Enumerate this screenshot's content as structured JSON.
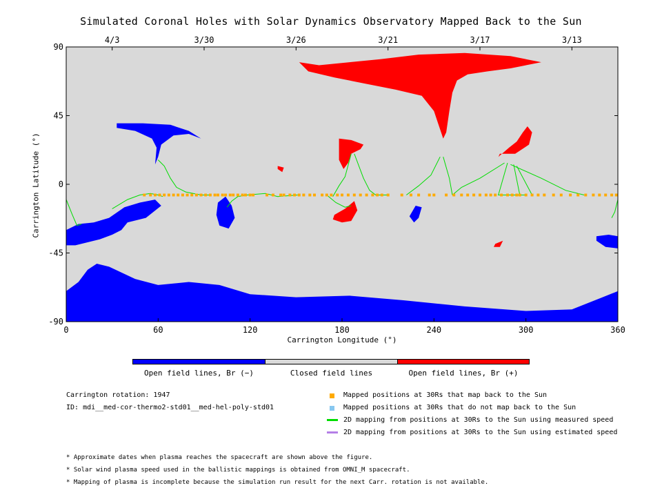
{
  "title": "Simulated Coronal Holes with Solar Dynamics Observatory Mapped Back to the Sun",
  "chart_data": {
    "type": "map",
    "xlabel": "Carrington Longitude (°)",
    "ylabel": "Carrington Latitude (°)",
    "xlim": [
      0,
      360
    ],
    "ylim": [
      -90,
      90
    ],
    "x_ticks": [
      "0",
      "60",
      "120",
      "180",
      "240",
      "300",
      "360"
    ],
    "y_ticks": [
      "90",
      "45",
      "0",
      "-45",
      "-90"
    ],
    "top_dates": [
      {
        "lon": 30,
        "label": "4/3"
      },
      {
        "lon": 90,
        "label": "3/30"
      },
      {
        "lon": 150,
        "label": "3/26"
      },
      {
        "lon": 210,
        "label": "3/21"
      },
      {
        "lon": 270,
        "label": "3/17"
      },
      {
        "lon": 330,
        "label": "3/13"
      }
    ],
    "colors": {
      "background": "#d9d9d9",
      "open_negative": "#0000ff",
      "open_positive": "#ff0000",
      "mapped": "#ffaa00",
      "unmapped": "#88c8f0",
      "measured_line": "#00dd00",
      "estimated_line": "#b47fe6"
    },
    "coronal_holes": [
      {
        "polarity": "positive",
        "region": "north-polar-extension",
        "points": [
          [
            152,
            80
          ],
          [
            165,
            78
          ],
          [
            185,
            80
          ],
          [
            205,
            82
          ],
          [
            230,
            85
          ],
          [
            260,
            86
          ],
          [
            290,
            84
          ],
          [
            310,
            80
          ],
          [
            290,
            76
          ],
          [
            275,
            74
          ],
          [
            262,
            72
          ],
          [
            255,
            68
          ],
          [
            252,
            60
          ],
          [
            250,
            48
          ],
          [
            248,
            34
          ],
          [
            246,
            30
          ],
          [
            244,
            36
          ],
          [
            240,
            48
          ],
          [
            232,
            58
          ],
          [
            215,
            62
          ],
          [
            195,
            66
          ],
          [
            175,
            70
          ],
          [
            158,
            74
          ]
        ]
      },
      {
        "polarity": "negative",
        "region": "south-polar",
        "points": [
          [
            0,
            -90
          ],
          [
            0,
            -70
          ],
          [
            8,
            -64
          ],
          [
            14,
            -56
          ],
          [
            20,
            -52
          ],
          [
            28,
            -54
          ],
          [
            45,
            -62
          ],
          [
            60,
            -66
          ],
          [
            80,
            -64
          ],
          [
            100,
            -66
          ],
          [
            120,
            -72
          ],
          [
            150,
            -74
          ],
          [
            185,
            -73
          ],
          [
            220,
            -76
          ],
          [
            260,
            -80
          ],
          [
            300,
            -83
          ],
          [
            330,
            -82
          ],
          [
            350,
            -74
          ],
          [
            360,
            -70
          ],
          [
            360,
            -90
          ]
        ]
      },
      {
        "polarity": "negative",
        "region": "mid-lat-60",
        "points": [
          [
            33,
            40
          ],
          [
            50,
            40
          ],
          [
            68,
            39
          ],
          [
            80,
            35
          ],
          [
            88,
            30
          ],
          [
            80,
            33
          ],
          [
            70,
            32
          ],
          [
            62,
            26
          ],
          [
            60,
            18
          ],
          [
            58,
            13
          ],
          [
            59,
            24
          ],
          [
            56,
            30
          ],
          [
            45,
            35
          ],
          [
            33,
            37
          ]
        ]
      },
      {
        "polarity": "negative",
        "region": "low-south-45",
        "points": [
          [
            0,
            -30
          ],
          [
            8,
            -26
          ],
          [
            18,
            -25
          ],
          [
            28,
            -22
          ],
          [
            38,
            -15
          ],
          [
            48,
            -12
          ],
          [
            58,
            -10
          ],
          [
            62,
            -14
          ],
          [
            52,
            -22
          ],
          [
            40,
            -25
          ],
          [
            36,
            -30
          ],
          [
            30,
            -33
          ],
          [
            22,
            -36
          ],
          [
            14,
            -38
          ],
          [
            6,
            -40
          ],
          [
            0,
            -40
          ]
        ]
      },
      {
        "polarity": "negative",
        "region": "small-104",
        "points": [
          [
            99,
            -12
          ],
          [
            104,
            -8
          ],
          [
            108,
            -14
          ],
          [
            110,
            -22
          ],
          [
            106,
            -29
          ],
          [
            100,
            -27
          ],
          [
            98,
            -20
          ]
        ]
      },
      {
        "polarity": "negative",
        "region": "small-230",
        "points": [
          [
            228,
            -14
          ],
          [
            232,
            -15
          ],
          [
            230,
            -22
          ],
          [
            227,
            -25
          ],
          [
            224,
            -21
          ]
        ]
      },
      {
        "polarity": "negative",
        "region": "limb-360",
        "points": [
          [
            346,
            -34
          ],
          [
            354,
            -33
          ],
          [
            360,
            -34
          ],
          [
            360,
            -42
          ],
          [
            352,
            -41
          ],
          [
            346,
            -37
          ]
        ]
      },
      {
        "polarity": "positive",
        "region": "ar-180",
        "points": [
          [
            178,
            30
          ],
          [
            186,
            29
          ],
          [
            194,
            26
          ],
          [
            192,
            23
          ],
          [
            186,
            20
          ],
          [
            184,
            14
          ],
          [
            181,
            10
          ],
          [
            178,
            16
          ]
        ]
      },
      {
        "polarity": "positive",
        "region": "ar-180-south",
        "points": [
          [
            175,
            -20
          ],
          [
            182,
            -16
          ],
          [
            188,
            -11
          ],
          [
            190,
            -17
          ],
          [
            186,
            -24
          ],
          [
            180,
            -25
          ],
          [
            174,
            -23
          ]
        ]
      },
      {
        "polarity": "positive",
        "region": "ar-295",
        "points": [
          [
            283,
            20
          ],
          [
            293,
            20
          ],
          [
            302,
            26
          ],
          [
            304,
            34
          ],
          [
            301,
            38
          ],
          [
            298,
            34
          ],
          [
            294,
            28
          ],
          [
            289,
            24
          ],
          [
            282,
            18
          ]
        ]
      },
      {
        "polarity": "positive",
        "region": "small-138",
        "points": [
          [
            138,
            12
          ],
          [
            142,
            11
          ],
          [
            141,
            8
          ],
          [
            138,
            10
          ]
        ]
      },
      {
        "polarity": "positive",
        "region": "small-284",
        "points": [
          [
            280,
            -39
          ],
          [
            285,
            -37
          ],
          [
            283,
            -41
          ],
          [
            279,
            -41
          ]
        ]
      }
    ],
    "mapped_points": {
      "lat": -7,
      "lons": [
        51,
        55,
        58,
        61,
        64,
        67,
        70,
        73,
        76,
        79,
        82,
        85,
        88,
        91,
        94,
        97,
        99,
        102,
        104,
        107,
        109,
        112,
        115,
        117,
        120,
        122,
        131,
        135,
        140,
        142,
        146,
        149,
        152,
        155,
        159,
        162,
        167,
        170,
        173,
        177,
        180,
        184,
        188,
        192,
        196,
        200,
        203,
        206,
        210,
        219,
        225,
        230,
        237,
        240,
        248,
        253,
        258,
        262,
        266,
        270,
        274,
        277,
        280,
        284,
        288,
        291,
        294,
        296,
        300,
        304,
        308,
        312,
        318,
        323,
        329,
        334,
        339,
        344,
        348,
        352,
        356,
        359
      ]
    },
    "measured_mappings": [
      [
        [
          0,
          -10
        ],
        [
          4,
          -20
        ],
        [
          7,
          -27
        ],
        [
          10,
          -26
        ]
      ],
      [
        [
          30,
          -16
        ],
        [
          40,
          -10
        ],
        [
          48,
          -7
        ],
        [
          55,
          -6
        ],
        [
          60,
          -7
        ],
        [
          63,
          -8
        ]
      ],
      [
        [
          60,
          16
        ],
        [
          64,
          12
        ],
        [
          68,
          4
        ],
        [
          72,
          -2
        ],
        [
          78,
          -5
        ],
        [
          88,
          -7
        ],
        [
          94,
          -7
        ]
      ],
      [
        [
          105,
          -15
        ],
        [
          108,
          -11
        ],
        [
          112,
          -8
        ],
        [
          118,
          -7
        ],
        [
          130,
          -6
        ],
        [
          138,
          -8
        ],
        [
          151,
          -7
        ]
      ],
      [
        [
          186,
          20
        ],
        [
          182,
          5
        ],
        [
          178,
          -1
        ],
        [
          174,
          -8
        ]
      ],
      [
        [
          188,
          20
        ],
        [
          194,
          4
        ],
        [
          198,
          -4
        ],
        [
          202,
          -7
        ],
        [
          210,
          -7
        ]
      ],
      [
        [
          170,
          -7
        ],
        [
          176,
          -12
        ],
        [
          182,
          -15
        ],
        [
          186,
          -14
        ]
      ],
      [
        [
          244,
          18
        ],
        [
          238,
          6
        ],
        [
          230,
          -1
        ],
        [
          222,
          -7
        ]
      ],
      [
        [
          246,
          18
        ],
        [
          250,
          4
        ],
        [
          252,
          -7
        ]
      ],
      [
        [
          286,
          14
        ],
        [
          270,
          4
        ],
        [
          258,
          -2
        ],
        [
          252,
          -7
        ]
      ],
      [
        [
          288,
          14
        ],
        [
          282,
          -7
        ],
        [
          292,
          -7
        ],
        [
          300,
          -7
        ]
      ],
      [
        [
          290,
          13
        ],
        [
          310,
          4
        ],
        [
          326,
          -4
        ],
        [
          338,
          -7
        ]
      ],
      [
        [
          292,
          13
        ],
        [
          296,
          -7
        ]
      ],
      [
        [
          294,
          12
        ],
        [
          304,
          -7
        ]
      ],
      [
        [
          360,
          -10
        ],
        [
          358,
          -18
        ],
        [
          356,
          -22
        ]
      ]
    ],
    "colorbar": [
      "Open field lines, Br (−)",
      "Closed field lines",
      "Open field lines, Br (+)"
    ]
  },
  "info": {
    "rotation": "Carrington rotation: 1947",
    "id": "ID: mdi__med-cor-thermo2-std01__med-hel-poly-std01"
  },
  "legend": [
    "Mapped positions at 30Rs that map back to the Sun",
    "Mapped positions at 30Rs that do not map back to the Sun",
    "2D mapping from positions at 30Rs to the Sun using measured speed",
    "2D mapping from positions at 30Rs to the Sun using estimated speed"
  ],
  "notes": [
    "* Approximate dates when plasma reaches the spacecraft are shown above the figure.",
    "* Solar wind plasma speed used in the ballistic mappings is obtained from OMNI_M spacecraft.",
    "* Mapping of plasma is incomplete because the simulation run result for the next Carr. rotation is not available."
  ]
}
